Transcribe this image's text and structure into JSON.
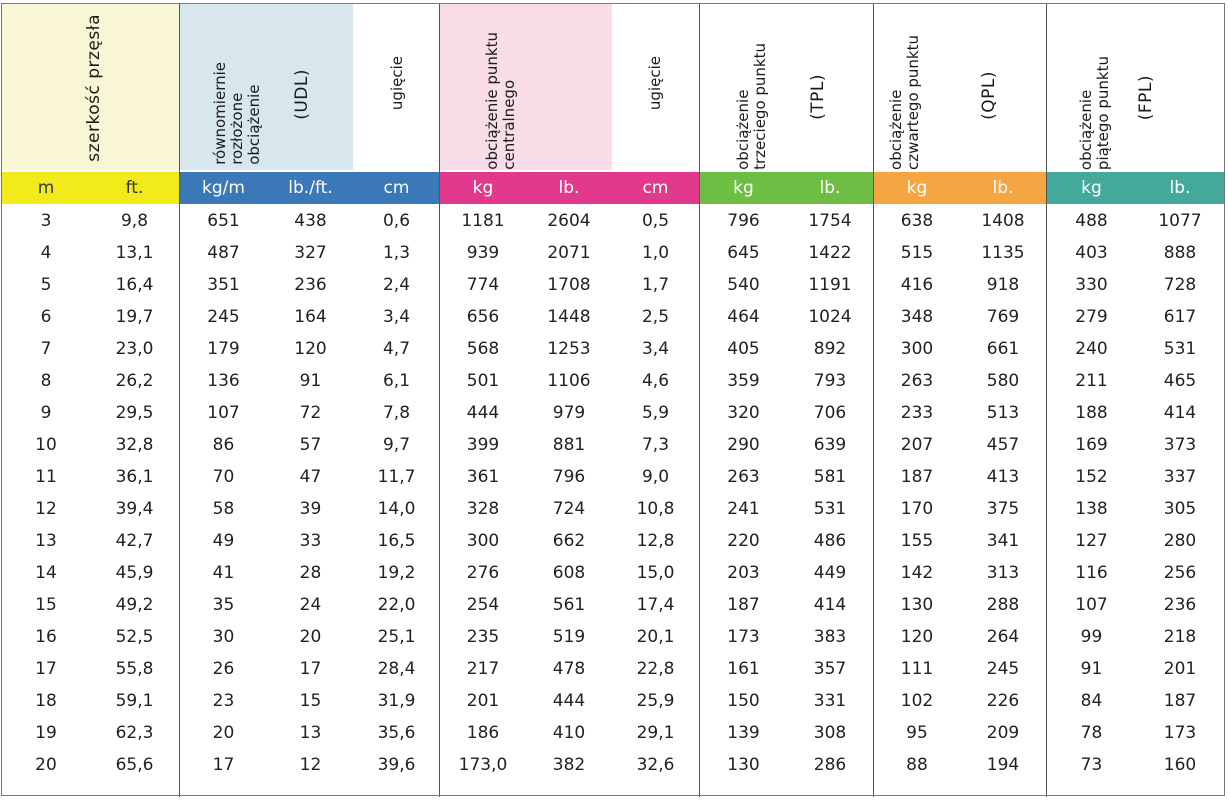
{
  "header": {
    "span": "szerkość przęsła",
    "udl_desc": "równomiernie\nrozłożone\nobciążenie",
    "udl_abbr": "(UDL)",
    "deflection_1": "ugięcie",
    "central_desc": "obciążenie punktu\ncentralnego",
    "deflection_2": "ugięcie",
    "tpl_desc": "obciążenie\ntrzeciego punktu",
    "tpl_abbr": "(TPL)",
    "qpl_desc": "obciążenie\nczwartego punktu",
    "qpl_abbr": "(QPL)",
    "fpl_desc": "obciążenie\npiątego punktu",
    "fpl_abbr": "(FPL)"
  },
  "units": [
    "m",
    "ft.",
    "kg/m",
    "lb./ft.",
    "cm",
    "kg",
    "lb.",
    "cm",
    "kg",
    "lb.",
    "kg",
    "lb.",
    "kg",
    "lb."
  ],
  "colors": {
    "yellow": "#f2ea1a",
    "yellow_light": "#f8f6d4",
    "blue": "#3b78b8",
    "blue_light": "#d8e6ee",
    "magenta": "#e2398c",
    "magenta_light": "#f9dde9",
    "green": "#6fbe44",
    "orange": "#f5a542",
    "teal": "#44a99a"
  },
  "rows": [
    [
      "3",
      "9,8",
      "651",
      "438",
      "0,6",
      "1181",
      "2604",
      "0,5",
      "796",
      "1754",
      "638",
      "1408",
      "488",
      "1077"
    ],
    [
      "4",
      "13,1",
      "487",
      "327",
      "1,3",
      "939",
      "2071",
      "1,0",
      "645",
      "1422",
      "515",
      "1135",
      "403",
      "888"
    ],
    [
      "5",
      "16,4",
      "351",
      "236",
      "2,4",
      "774",
      "1708",
      "1,7",
      "540",
      "1191",
      "416",
      "918",
      "330",
      "728"
    ],
    [
      "6",
      "19,7",
      "245",
      "164",
      "3,4",
      "656",
      "1448",
      "2,5",
      "464",
      "1024",
      "348",
      "769",
      "279",
      "617"
    ],
    [
      "7",
      "23,0",
      "179",
      "120",
      "4,7",
      "568",
      "1253",
      "3,4",
      "405",
      "892",
      "300",
      "661",
      "240",
      "531"
    ],
    [
      "8",
      "26,2",
      "136",
      "91",
      "6,1",
      "501",
      "1106",
      "4,6",
      "359",
      "793",
      "263",
      "580",
      "211",
      "465"
    ],
    [
      "9",
      "29,5",
      "107",
      "72",
      "7,8",
      "444",
      "979",
      "5,9",
      "320",
      "706",
      "233",
      "513",
      "188",
      "414"
    ],
    [
      "10",
      "32,8",
      "86",
      "57",
      "9,7",
      "399",
      "881",
      "7,3",
      "290",
      "639",
      "207",
      "457",
      "169",
      "373"
    ],
    [
      "11",
      "36,1",
      "70",
      "47",
      "11,7",
      "361",
      "796",
      "9,0",
      "263",
      "581",
      "187",
      "413",
      "152",
      "337"
    ],
    [
      "12",
      "39,4",
      "58",
      "39",
      "14,0",
      "328",
      "724",
      "10,8",
      "241",
      "531",
      "170",
      "375",
      "138",
      "305"
    ],
    [
      "13",
      "42,7",
      "49",
      "33",
      "16,5",
      "300",
      "662",
      "12,8",
      "220",
      "486",
      "155",
      "341",
      "127",
      "280"
    ],
    [
      "14",
      "45,9",
      "41",
      "28",
      "19,2",
      "276",
      "608",
      "15,0",
      "203",
      "449",
      "142",
      "313",
      "116",
      "256"
    ],
    [
      "15",
      "49,2",
      "35",
      "24",
      "22,0",
      "254",
      "561",
      "17,4",
      "187",
      "414",
      "130",
      "288",
      "107",
      "236"
    ],
    [
      "16",
      "52,5",
      "30",
      "20",
      "25,1",
      "235",
      "519",
      "20,1",
      "173",
      "383",
      "120",
      "264",
      "99",
      "218"
    ],
    [
      "17",
      "55,8",
      "26",
      "17",
      "28,4",
      "217",
      "478",
      "22,8",
      "161",
      "357",
      "111",
      "245",
      "91",
      "201"
    ],
    [
      "18",
      "59,1",
      "23",
      "15",
      "31,9",
      "201",
      "444",
      "25,9",
      "150",
      "331",
      "102",
      "226",
      "84",
      "187"
    ],
    [
      "19",
      "62,3",
      "20",
      "13",
      "35,6",
      "186",
      "410",
      "29,1",
      "139",
      "308",
      "95",
      "209",
      "78",
      "173"
    ],
    [
      "20",
      "65,6",
      "17",
      "12",
      "39,6",
      "173,0",
      "382",
      "32,6",
      "130",
      "286",
      "88",
      "194",
      "73",
      "160"
    ]
  ]
}
